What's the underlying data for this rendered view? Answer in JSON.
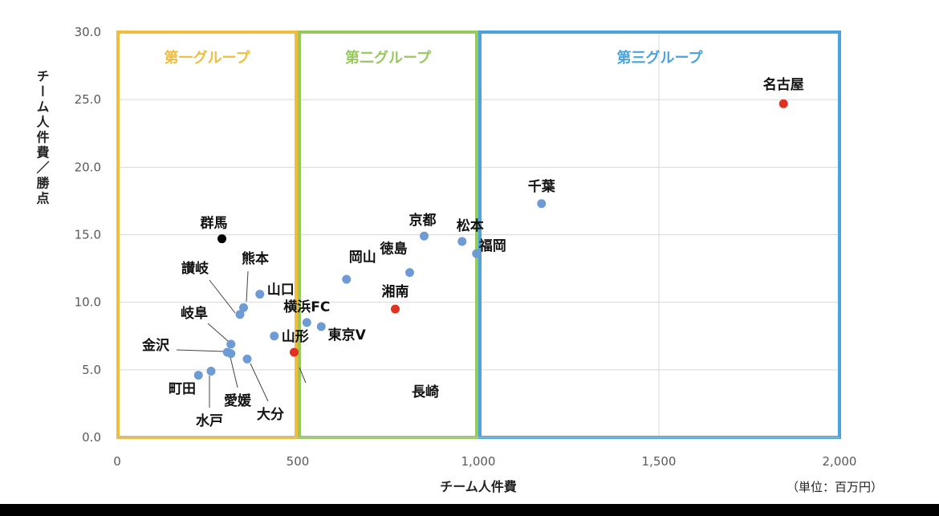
{
  "chart_data": {
    "type": "scatter",
    "title": "",
    "xlabel": "チーム人件費",
    "ylabel": "チーム人件費／勝点",
    "unit_note": "（単位：百万円）",
    "xlim": [
      0,
      2000
    ],
    "ylim": [
      0,
      30
    ],
    "x_ticks": [
      "0",
      "500",
      "1,000",
      "1,500",
      "2,000"
    ],
    "y_ticks": [
      "0.0",
      "5.0",
      "10.0",
      "15.0",
      "20.0",
      "25.0",
      "30.0"
    ],
    "grid": true,
    "colors": {
      "default": "#6e9bd4",
      "highlight": "#e2311f",
      "special": "#000000"
    },
    "groups": [
      {
        "name": "第一グループ",
        "x_range": [
          0,
          500
        ],
        "color": "#f0bd3c"
      },
      {
        "name": "第二グループ",
        "x_range": [
          500,
          1000
        ],
        "color": "#97c95c"
      },
      {
        "name": "第三グループ",
        "x_range": [
          1000,
          2000
        ],
        "color": "#4aa3dc"
      }
    ],
    "points": [
      {
        "label": "名古屋",
        "x": 1845,
        "y": 24.7,
        "color": "highlight"
      },
      {
        "label": "千葉",
        "x": 1175,
        "y": 17.3,
        "color": "default"
      },
      {
        "label": "松本",
        "x": 955,
        "y": 14.5,
        "color": "default"
      },
      {
        "label": "福岡",
        "x": 995,
        "y": 13.6,
        "color": "default"
      },
      {
        "label": "京都",
        "x": 850,
        "y": 14.9,
        "color": "default"
      },
      {
        "label": "徳島",
        "x": 810,
        "y": 12.2,
        "color": "default"
      },
      {
        "label": "岡山",
        "x": 635,
        "y": 11.7,
        "color": "default"
      },
      {
        "label": "湘南",
        "x": 770,
        "y": 9.5,
        "color": "highlight"
      },
      {
        "label": "横浜FC",
        "x": 525,
        "y": 8.5,
        "color": "default"
      },
      {
        "label": "東京V",
        "x": 565,
        "y": 8.2,
        "color": "default"
      },
      {
        "label": "山形",
        "x": 435,
        "y": 7.5,
        "color": "default"
      },
      {
        "label": "長崎",
        "x": 490,
        "y": 6.3,
        "color": "highlight"
      },
      {
        "label": "群馬",
        "x": 290,
        "y": 14.7,
        "color": "special"
      },
      {
        "label": "熊本",
        "x": 350,
        "y": 9.6,
        "color": "default"
      },
      {
        "label": "讃岐",
        "x": 340,
        "y": 9.1,
        "color": "default"
      },
      {
        "label": "山口",
        "x": 395,
        "y": 10.6,
        "color": "default"
      },
      {
        "label": "岐阜",
        "x": 315,
        "y": 6.9,
        "color": "default"
      },
      {
        "label": "金沢",
        "x": 305,
        "y": 6.3,
        "color": "default"
      },
      {
        "label": "愛媛",
        "x": 315,
        "y": 6.2,
        "color": "default"
      },
      {
        "label": "大分",
        "x": 360,
        "y": 5.8,
        "color": "default"
      },
      {
        "label": "水戸",
        "x": 260,
        "y": 4.9,
        "color": "default"
      },
      {
        "label": "町田",
        "x": 225,
        "y": 4.6,
        "color": "default"
      }
    ]
  }
}
